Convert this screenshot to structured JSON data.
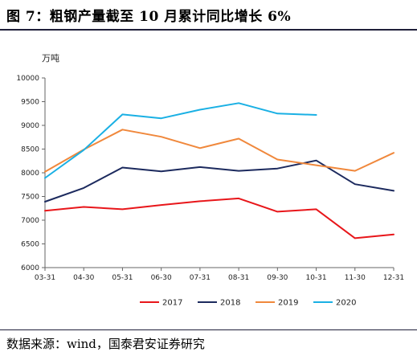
{
  "header": {
    "title": "图 7：粗钢产量截至 10 月累计同比增长 6%"
  },
  "footer": {
    "source": "数据来源：wind，国泰君安证券研究"
  },
  "chart_data": {
    "type": "line",
    "unit_label": "万吨",
    "categories": [
      "03-31",
      "04-30",
      "05-31",
      "06-30",
      "07-31",
      "08-31",
      "09-30",
      "10-31",
      "11-30",
      "12-31"
    ],
    "ylim": [
      6000,
      10000
    ],
    "yticks": [
      6000,
      6500,
      7000,
      7500,
      8000,
      8500,
      9000,
      9500,
      10000
    ],
    "grid": false,
    "legend_position": "bottom",
    "series": [
      {
        "name": "2017",
        "color": "#e8161a",
        "values": [
          7200,
          7280,
          7230,
          7320,
          7400,
          7460,
          7180,
          7230,
          6620,
          6700
        ]
      },
      {
        "name": "2018",
        "color": "#1c2a5e",
        "values": [
          7390,
          7680,
          8110,
          8030,
          8120,
          8040,
          8090,
          8260,
          7760,
          7620
        ]
      },
      {
        "name": "2019",
        "color": "#f0883c",
        "values": [
          8020,
          8490,
          8910,
          8760,
          8520,
          8720,
          8280,
          8160,
          8040,
          8420
        ]
      },
      {
        "name": "2020",
        "color": "#1ab0e4",
        "values": [
          7890,
          8480,
          9230,
          9150,
          9330,
          9470,
          9250,
          9220,
          null,
          null
        ]
      }
    ]
  }
}
